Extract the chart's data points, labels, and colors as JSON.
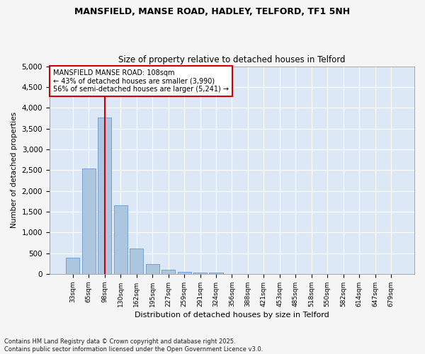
{
  "title_line1": "MANSFIELD, MANSE ROAD, HADLEY, TELFORD, TF1 5NH",
  "title_line2": "Size of property relative to detached houses in Telford",
  "xlabel": "Distribution of detached houses by size in Telford",
  "ylabel": "Number of detached properties",
  "categories": [
    "33sqm",
    "65sqm",
    "98sqm",
    "130sqm",
    "162sqm",
    "195sqm",
    "227sqm",
    "259sqm",
    "291sqm",
    "324sqm",
    "356sqm",
    "388sqm",
    "421sqm",
    "453sqm",
    "485sqm",
    "518sqm",
    "550sqm",
    "582sqm",
    "614sqm",
    "647sqm",
    "679sqm"
  ],
  "values": [
    390,
    2540,
    3770,
    1650,
    610,
    230,
    110,
    55,
    40,
    35,
    0,
    0,
    0,
    0,
    0,
    0,
    0,
    0,
    0,
    0,
    0
  ],
  "bar_color": "#adc6e0",
  "bar_edge_color": "#6699cc",
  "vline_color": "#cc0000",
  "vline_index": 2,
  "annotation_text": "MANSFIELD MANSE ROAD: 108sqm\n← 43% of detached houses are smaller (3,990)\n56% of semi-detached houses are larger (5,241) →",
  "annotation_box_color": "#ffffff",
  "annotation_box_edge": "#cc0000",
  "ylim": [
    0,
    5000
  ],
  "yticks": [
    0,
    500,
    1000,
    1500,
    2000,
    2500,
    3000,
    3500,
    4000,
    4500,
    5000
  ],
  "plot_bg_color": "#dce8f5",
  "fig_bg_color": "#f5f5f5",
  "grid_color": "#ffffff",
  "footer_text": "Contains HM Land Registry data © Crown copyright and database right 2025.\nContains public sector information licensed under the Open Government Licence v3.0."
}
